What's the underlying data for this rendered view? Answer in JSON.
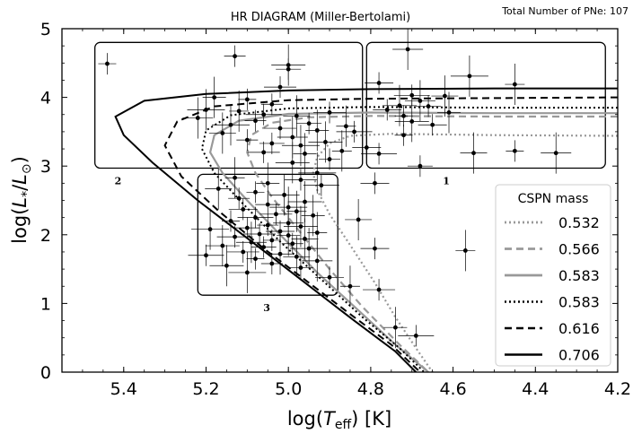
{
  "chart_data": {
    "type": "scatter",
    "title": "HR DIAGRAM (Miller-Bertolami)",
    "corner_note": "Total Number of PNe: 107",
    "xlabel": "log(T_eff) [K]",
    "ylabel": "log(L*/L⊙)",
    "xlim": [
      5.55,
      4.2
    ],
    "ylim": [
      0,
      5
    ],
    "x_ticks": [
      "5.4",
      "5.2",
      "5.0",
      "4.8",
      "4.6",
      "4.4",
      "4.2"
    ],
    "x_tick_values": [
      5.4,
      5.2,
      5.0,
      4.8,
      4.6,
      4.4,
      4.2
    ],
    "y_ticks": [
      "0",
      "1",
      "2",
      "3",
      "4",
      "5"
    ],
    "y_tick_values": [
      0,
      1,
      2,
      3,
      4,
      5
    ],
    "legend": {
      "title": "CSPN mass",
      "placement": "lower-right"
    },
    "regions": [
      {
        "label": "1",
        "x_range": [
          4.81,
          4.23
        ],
        "y_range": [
          2.97,
          4.8
        ]
      },
      {
        "label": "2",
        "x_range": [
          5.47,
          4.82
        ],
        "y_range": [
          2.97,
          4.8
        ]
      },
      {
        "label": "3",
        "x_range": [
          5.22,
          4.88
        ],
        "y_range": [
          1.12,
          2.88
        ]
      }
    ],
    "series": [
      {
        "name": "0.532",
        "color": "#999999",
        "style": "dotted",
        "width": 2.2,
        "points": [
          [
            4.2,
            3.44
          ],
          [
            4.5,
            3.45
          ],
          [
            4.75,
            3.47
          ],
          [
            4.85,
            3.44
          ],
          [
            4.9,
            3.33
          ],
          [
            4.93,
            3.13
          ],
          [
            4.94,
            2.9
          ],
          [
            4.93,
            2.65
          ],
          [
            4.9,
            2.3
          ],
          [
            4.85,
            1.85
          ],
          [
            4.79,
            1.3
          ],
          [
            4.74,
            0.8
          ],
          [
            4.69,
            0.35
          ],
          [
            4.65,
            0
          ]
        ]
      },
      {
        "name": "0.566",
        "color": "#999999",
        "style": "dashed",
        "width": 2.2,
        "points": [
          [
            4.2,
            3.72
          ],
          [
            4.5,
            3.72
          ],
          [
            4.8,
            3.73
          ],
          [
            4.95,
            3.71
          ],
          [
            5.04,
            3.63
          ],
          [
            5.09,
            3.45
          ],
          [
            5.1,
            3.2
          ],
          [
            5.08,
            2.9
          ],
          [
            5.04,
            2.55
          ],
          [
            4.98,
            2.1
          ],
          [
            4.9,
            1.5
          ],
          [
            4.82,
            0.95
          ],
          [
            4.73,
            0.4
          ],
          [
            4.66,
            0
          ]
        ]
      },
      {
        "name": "0.583",
        "color": "#999999",
        "style": "solid",
        "width": 2.2,
        "points": [
          [
            4.2,
            3.77
          ],
          [
            4.5,
            3.77
          ],
          [
            4.8,
            3.78
          ],
          [
            5.0,
            3.76
          ],
          [
            5.12,
            3.66
          ],
          [
            5.18,
            3.45
          ],
          [
            5.19,
            3.2
          ],
          [
            5.16,
            2.9
          ],
          [
            5.1,
            2.5
          ],
          [
            5.02,
            2.0
          ],
          [
            4.93,
            1.45
          ],
          [
            4.83,
            0.9
          ],
          [
            4.74,
            0.4
          ],
          [
            4.66,
            0
          ]
        ]
      },
      {
        "name": "0.583",
        "color": "#000000",
        "style": "dotted",
        "width": 2.0,
        "points": [
          [
            4.2,
            3.85
          ],
          [
            4.5,
            3.85
          ],
          [
            4.8,
            3.86
          ],
          [
            5.0,
            3.84
          ],
          [
            5.14,
            3.74
          ],
          [
            5.2,
            3.52
          ],
          [
            5.21,
            3.25
          ],
          [
            5.18,
            2.9
          ],
          [
            5.11,
            2.45
          ],
          [
            5.02,
            1.9
          ],
          [
            4.92,
            1.35
          ],
          [
            4.82,
            0.8
          ],
          [
            4.73,
            0.35
          ],
          [
            4.67,
            0
          ]
        ]
      },
      {
        "name": "0.616",
        "color": "#000000",
        "style": "dashed",
        "width": 2.0,
        "points": [
          [
            4.2,
            4.0
          ],
          [
            4.5,
            3.99
          ],
          [
            4.8,
            3.98
          ],
          [
            5.0,
            3.96
          ],
          [
            5.18,
            3.87
          ],
          [
            5.27,
            3.65
          ],
          [
            5.3,
            3.3
          ],
          [
            5.26,
            2.85
          ],
          [
            5.17,
            2.35
          ],
          [
            5.06,
            1.8
          ],
          [
            4.95,
            1.3
          ],
          [
            4.84,
            0.8
          ],
          [
            4.75,
            0.4
          ],
          [
            4.68,
            0
          ]
        ]
      },
      {
        "name": "0.706",
        "color": "#000000",
        "style": "solid",
        "width": 2.0,
        "points": [
          [
            4.2,
            4.13
          ],
          [
            4.5,
            4.13
          ],
          [
            4.8,
            4.12
          ],
          [
            5.0,
            4.1
          ],
          [
            5.2,
            4.05
          ],
          [
            5.35,
            3.95
          ],
          [
            5.42,
            3.72
          ],
          [
            5.4,
            3.45
          ],
          [
            5.33,
            3.05
          ],
          [
            5.22,
            2.5
          ],
          [
            5.1,
            1.95
          ],
          [
            4.97,
            1.35
          ],
          [
            4.84,
            0.75
          ],
          [
            4.74,
            0.3
          ],
          [
            4.69,
            0
          ]
        ]
      }
    ],
    "points": [
      [
        5.44,
        4.49
      ],
      [
        4.71,
        4.7
      ],
      [
        5.13,
        4.6
      ],
      [
        5.0,
        4.47
      ],
      [
        5.0,
        4.41
      ],
      [
        4.56,
        4.31
      ],
      [
        4.78,
        4.21
      ],
      [
        4.45,
        4.19
      ],
      [
        5.02,
        4.15
      ],
      [
        5.18,
        4.0
      ],
      [
        4.7,
        4.03
      ],
      [
        4.62,
        4.02
      ],
      [
        5.1,
        3.97
      ],
      [
        4.68,
        3.95
      ],
      [
        5.04,
        3.9
      ],
      [
        4.73,
        3.88
      ],
      [
        4.66,
        3.87
      ],
      [
        5.2,
        3.82
      ],
      [
        4.76,
        3.82
      ],
      [
        5.12,
        3.8
      ],
      [
        4.9,
        3.78
      ],
      [
        4.61,
        3.78
      ],
      [
        5.06,
        3.75
      ],
      [
        4.98,
        3.73
      ],
      [
        4.72,
        3.73
      ],
      [
        5.22,
        3.7
      ],
      [
        5.08,
        3.66
      ],
      [
        4.7,
        3.65
      ],
      [
        4.95,
        3.62
      ],
      [
        5.14,
        3.6
      ],
      [
        4.65,
        3.6
      ],
      [
        4.86,
        3.58
      ],
      [
        5.02,
        3.55
      ],
      [
        4.93,
        3.52
      ],
      [
        4.84,
        3.5
      ],
      [
        5.16,
        3.48
      ],
      [
        4.72,
        3.45
      ],
      [
        4.99,
        3.42
      ],
      [
        5.1,
        3.38
      ],
      [
        4.91,
        3.35
      ],
      [
        5.04,
        3.33
      ],
      [
        4.97,
        3.3
      ],
      [
        4.81,
        3.27
      ],
      [
        4.87,
        3.22
      ],
      [
        5.06,
        3.2
      ],
      [
        4.96,
        3.18
      ],
      [
        4.78,
        3.18
      ],
      [
        4.55,
        3.19
      ],
      [
        4.45,
        3.22
      ],
      [
        4.35,
        3.19
      ],
      [
        4.9,
        3.1
      ],
      [
        4.99,
        3.05
      ],
      [
        4.68,
        3.0
      ],
      [
        4.93,
        2.9
      ],
      [
        4.79,
        2.75
      ],
      [
        5.13,
        2.83
      ],
      [
        4.97,
        2.8
      ],
      [
        5.05,
        2.75
      ],
      [
        4.92,
        2.72
      ],
      [
        5.17,
        2.67
      ],
      [
        5.08,
        2.62
      ],
      [
        5.01,
        2.58
      ],
      [
        5.12,
        2.53
      ],
      [
        4.96,
        2.48
      ],
      [
        5.05,
        2.44
      ],
      [
        5.0,
        2.4
      ],
      [
        5.11,
        2.37
      ],
      [
        4.98,
        2.34
      ],
      [
        5.03,
        2.3
      ],
      [
        4.94,
        2.28
      ],
      [
        5.08,
        2.25
      ],
      [
        4.83,
        2.22
      ],
      [
        5.14,
        2.2
      ],
      [
        5.0,
        2.17
      ],
      [
        5.05,
        2.14
      ],
      [
        4.97,
        2.12
      ],
      [
        5.1,
        2.1
      ],
      [
        5.19,
        2.08
      ],
      [
        5.02,
        2.05
      ],
      [
        4.93,
        2.03
      ],
      [
        5.07,
        2.01
      ],
      [
        5.0,
        1.99
      ],
      [
        5.13,
        1.97
      ],
      [
        4.96,
        1.94
      ],
      [
        5.04,
        1.92
      ],
      [
        5.09,
        1.89
      ],
      [
        4.99,
        1.87
      ],
      [
        5.16,
        1.84
      ],
      [
        5.06,
        1.82
      ],
      [
        4.95,
        1.8
      ],
      [
        4.79,
        1.8
      ],
      [
        4.57,
        1.77
      ],
      [
        5.11,
        1.75
      ],
      [
        5.02,
        1.72
      ],
      [
        5.2,
        1.7
      ],
      [
        4.98,
        1.68
      ],
      [
        5.08,
        1.65
      ],
      [
        4.93,
        1.62
      ],
      [
        5.04,
        1.58
      ],
      [
        5.15,
        1.55
      ],
      [
        4.97,
        1.52
      ],
      [
        5.1,
        1.45
      ],
      [
        4.9,
        1.38
      ],
      [
        4.85,
        1.25
      ],
      [
        4.78,
        1.2
      ],
      [
        4.74,
        0.65
      ],
      [
        4.69,
        0.53
      ]
    ]
  }
}
